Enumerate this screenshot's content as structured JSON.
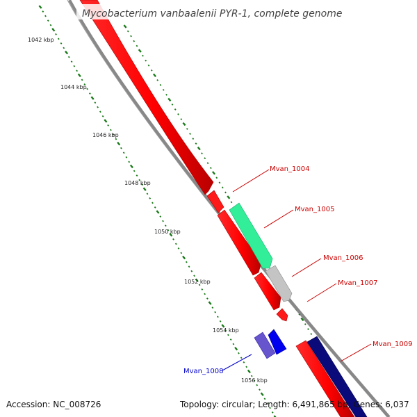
{
  "title": "Mycobacterium vanbaalenii PYR-1, complete genome",
  "accession": "Accession: NC_008726",
  "topology": "Topology: circular; Length: 6,491,865 bp; Genes: 6,037",
  "kbp_labels": [
    "1042 kbp",
    "1044 kbp",
    "1046 kbp",
    "1048 kbp",
    "1050 kbp",
    "1052 kbp",
    "1054 kbp",
    "1056 kbp"
  ],
  "genes": [
    {
      "name": "Mvan_1004",
      "color": "#cc0000"
    },
    {
      "name": "Mvan_1005",
      "color": "#cc0000"
    },
    {
      "name": "Mvan_1006",
      "color": "#cc0000"
    },
    {
      "name": "Mvan_1007",
      "color": "#cc0000"
    },
    {
      "name": "Mvan_1008",
      "color": "#0000cc"
    },
    {
      "name": "Mvan_1009",
      "color": "#cc0000"
    }
  ],
  "colors": {
    "forward_gene": "#ff0000",
    "reverse_gene": "#0000ee",
    "gc_skew_tick": "#1a7a1a",
    "backbone": "#888888",
    "accent_green": "#33ee99",
    "accent_grey": "#bbbbbb",
    "accent_navy": "#000077",
    "accent_violet": "#6655cc"
  }
}
